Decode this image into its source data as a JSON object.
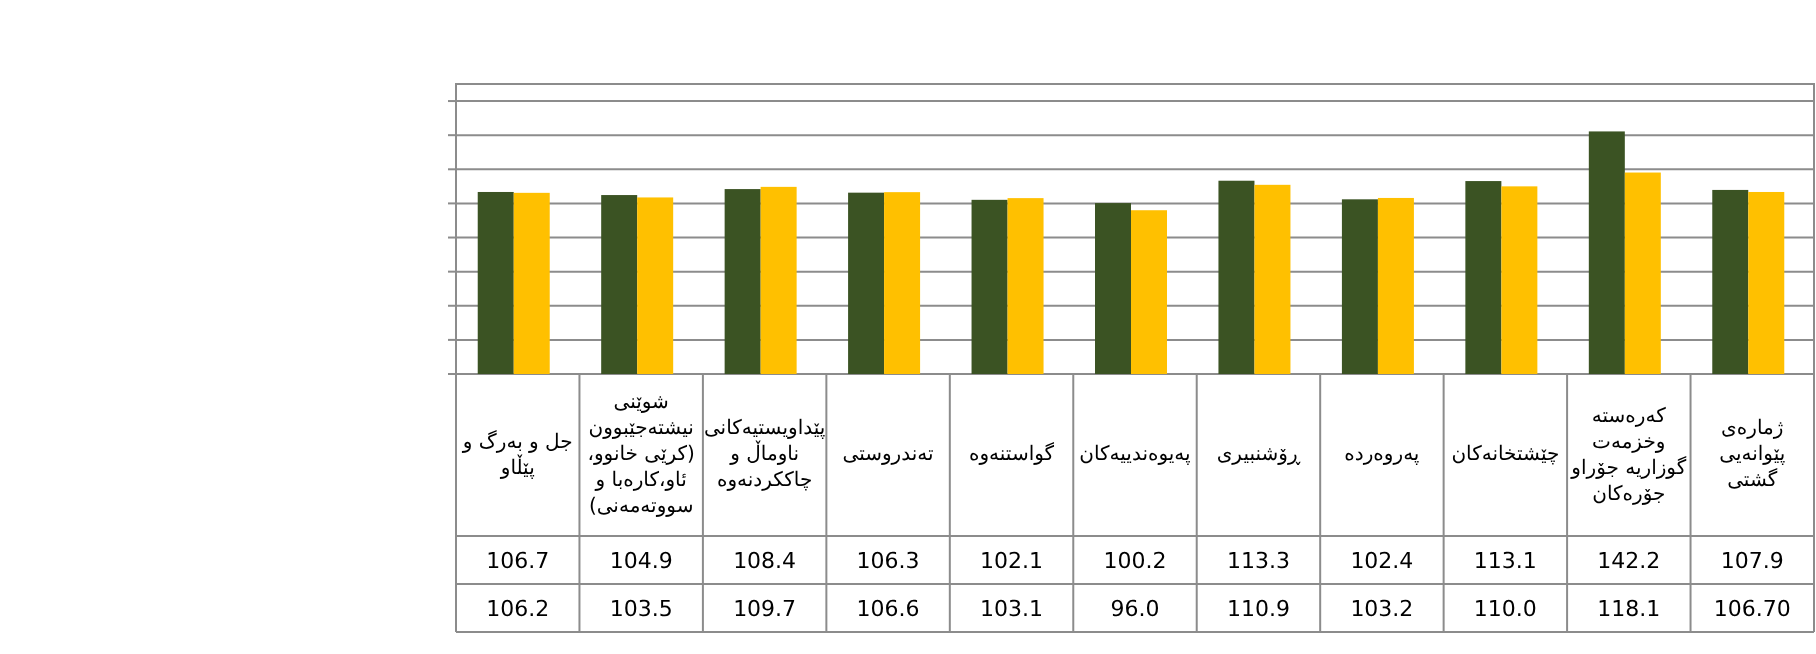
{
  "chart_data": {
    "type": "bar",
    "categories": [
      "جل و بەرگ و پێڵاو",
      "شوێنی نیشتەجێبوون (کرێی خانوو، ئاو،کارەبا و سووتەمەنی)",
      "پێداویستیەکانی ناوماڵ و چاککردنەوە",
      "تەندروستی",
      "گواستنەوە",
      "پەیوەندییەکان",
      "ڕۆشنبیری",
      "پەروەردە",
      "چێشتخانەکان",
      "کەرەستە وخزمەت گوزاریە جۆراو جۆرەکان",
      "ژمارەی پێوانەیی گشتی"
    ],
    "series": [
      {
        "color": "#3b5323",
        "values": [
          106.7,
          104.9,
          108.4,
          106.3,
          102.1,
          100.2,
          113.3,
          102.4,
          113.1,
          142.2,
          107.9
        ],
        "value_labels": [
          "106.7",
          "104.9",
          "108.4",
          "106.3",
          "102.1",
          "100.2",
          "113.3",
          "102.4",
          "113.1",
          "142.2",
          "107.9"
        ]
      },
      {
        "color": "#ffc000",
        "values": [
          106.2,
          103.5,
          109.7,
          106.6,
          103.1,
          96.0,
          110.9,
          103.2,
          110.0,
          118.1,
          106.7
        ],
        "value_labels": [
          "106.2",
          "103.5",
          "109.7",
          "106.6",
          "103.1",
          "96.0",
          "110.9",
          "103.2",
          "110.0",
          "118.1",
          "106.70"
        ]
      }
    ],
    "ylim": [
      0,
      170
    ],
    "yticks": [
      {
        "value": 0,
        "label": null
      },
      {
        "value": 20,
        "label": null
      },
      {
        "value": 40,
        "label": null
      },
      {
        "value": 60,
        "label": null
      },
      {
        "value": 80,
        "label": null
      },
      {
        "value": 100,
        "label": null
      },
      {
        "value": 120,
        "label": null
      },
      {
        "value": 140,
        "label": null
      },
      {
        "value": 160,
        "label": null
      }
    ],
    "grid": "y",
    "tick_labels": "x"
  }
}
